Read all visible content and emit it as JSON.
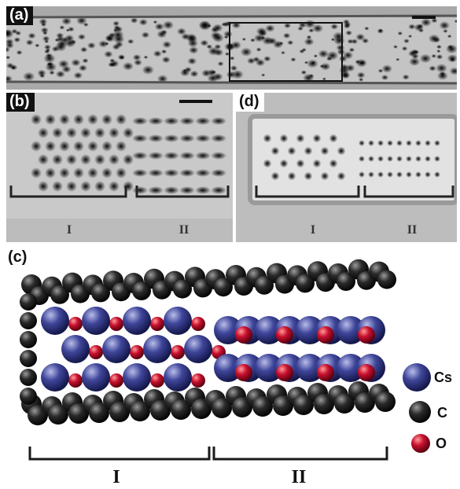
{
  "panels": {
    "a": {
      "label": "(a)"
    },
    "b": {
      "label": "(b)",
      "regions": [
        "I",
        "II"
      ]
    },
    "c": {
      "label": "(c)",
      "regions": [
        "I",
        "II"
      ]
    },
    "d": {
      "label": "(d)",
      "regions": [
        "I",
        "II"
      ]
    }
  },
  "legend": [
    {
      "symbol": "Cs",
      "color": "#3a3f8f"
    },
    {
      "symbol": "C",
      "color": "#1a1a1a"
    },
    {
      "symbol": "O",
      "color": "#c8102e"
    }
  ]
}
